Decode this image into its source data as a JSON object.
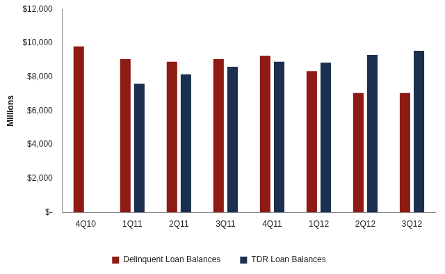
{
  "chart_data": {
    "type": "bar",
    "y_label": "Millions",
    "categories": [
      "4Q10",
      "1Q11",
      "2Q11",
      "3Q11",
      "4Q11",
      "1Q12",
      "2Q12",
      "3Q12"
    ],
    "series": [
      {
        "name": "Delinquent Loan Balances",
        "color": "#8e1b14",
        "values": [
          9800,
          9050,
          8900,
          9050,
          9250,
          8350,
          7050,
          7050
        ]
      },
      {
        "name": "TDR Loan Balances",
        "color": "#1b2f4f",
        "values": [
          null,
          7600,
          8150,
          8600,
          8900,
          8850,
          9300,
          9550
        ]
      }
    ],
    "ylim": [
      0,
      12000
    ],
    "yticks": [
      {
        "value": 0,
        "label": "$-"
      },
      {
        "value": 2000,
        "label": "$2,000"
      },
      {
        "value": 4000,
        "label": "$4,000"
      },
      {
        "value": 6000,
        "label": "$6,000"
      },
      {
        "value": 8000,
        "label": "$8,000"
      },
      {
        "value": 10000,
        "label": "$10,000"
      },
      {
        "value": 12000,
        "label": "$12,000"
      }
    ],
    "grid": false,
    "legend": "bottom"
  }
}
